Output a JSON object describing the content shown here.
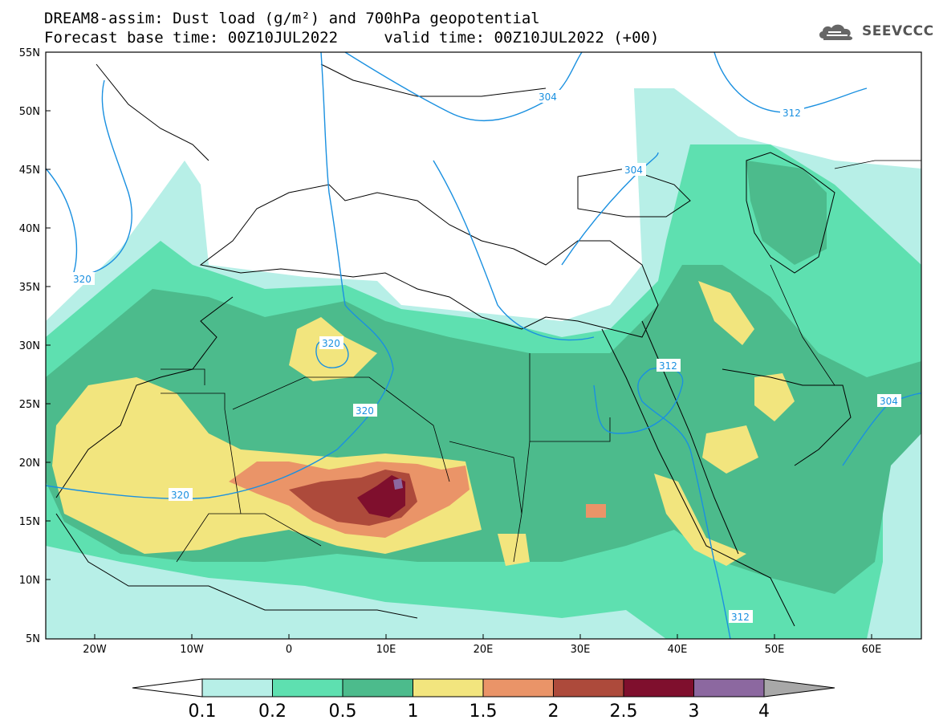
{
  "title_line1": "DREAM8-assim: Dust load (g/m²) and 700hPa geopotential",
  "title_line2": "Forecast base time: 00Z10JUL2022     valid time: 00Z10JUL2022 (+00)",
  "logo": {
    "text": "SEEVCCC",
    "icon": "cloud-icon"
  },
  "axes": {
    "lat_labels": [
      "55N",
      "50N",
      "45N",
      "40N",
      "35N",
      "30N",
      "25N",
      "20N",
      "15N",
      "10N",
      "5N"
    ],
    "lon_labels": [
      "20W",
      "10W",
      "0",
      "10E",
      "20E",
      "30E",
      "40E",
      "50E",
      "60E"
    ]
  },
  "contour_labels": [
    "320",
    "320",
    "320",
    "320",
    "304",
    "304",
    "312",
    "312",
    "312",
    "304"
  ],
  "colorbar": {
    "colors": [
      "#b7efe7",
      "#5ee0b0",
      "#4cbb8c",
      "#f2e57e",
      "#ea9468",
      "#ad4a3b",
      "#7f0f2d",
      "#8c68a0",
      "#a8a8a8"
    ],
    "labels": [
      "0.1",
      "0.2",
      "0.5",
      "1",
      "1.5",
      "2",
      "2.5",
      "3",
      "4"
    ]
  },
  "legend": {
    "levels_gm2": [
      0.1,
      0.2,
      0.5,
      1,
      1.5,
      2,
      2.5,
      3,
      4
    ]
  }
}
